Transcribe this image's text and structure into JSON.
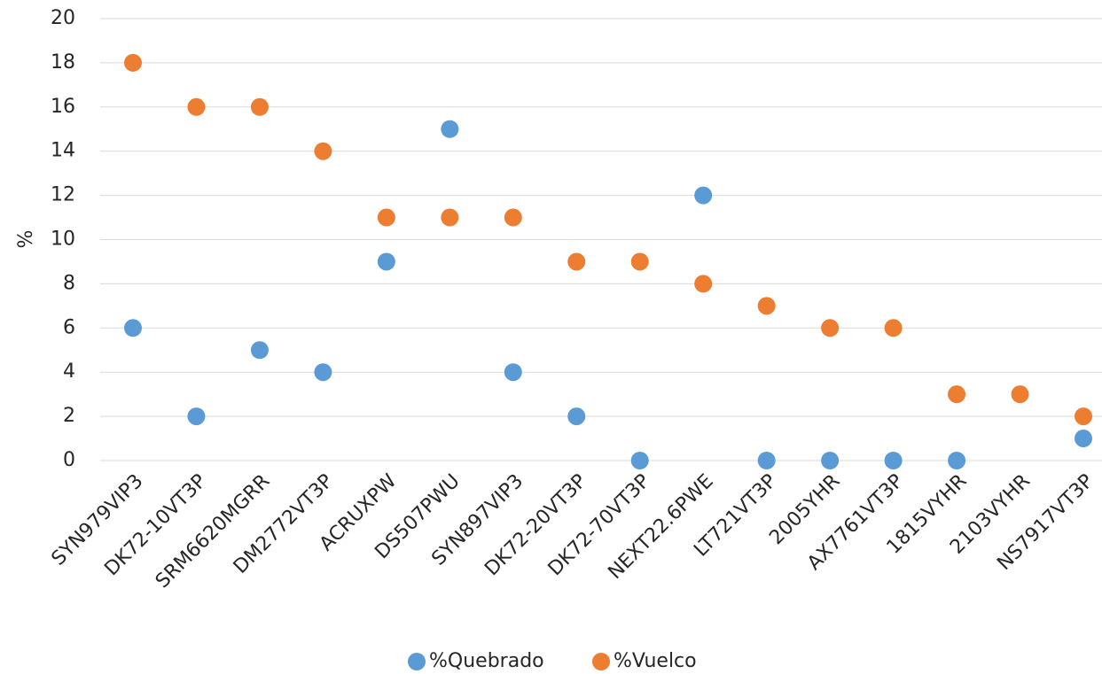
{
  "chart_data": {
    "type": "scatter",
    "y_label": "%",
    "categories": [
      "SYN979VIP3",
      "DK72-10VT3P",
      "SRM6620MGRR",
      "DM2772VT3P",
      "ACRUXPW",
      "DS507PWU",
      "SYN897VIP3",
      "DK72-20VT3P",
      "DK72-70VT3P",
      "NEXT22.6PWE",
      "LT721VT3P",
      "2005YHR",
      "AX7761VT3P",
      "1815VYHR",
      "2103VYHR",
      "NS7917VT3P"
    ],
    "series": [
      {
        "name": "%Quebrado",
        "color": "#5b9bd5",
        "values": [
          6,
          2,
          5,
          4,
          9,
          15,
          4,
          2,
          0,
          12,
          0,
          0,
          0,
          0,
          null,
          1
        ]
      },
      {
        "name": "%Vuelco",
        "color": "#ed7d31",
        "values": [
          18,
          16,
          16,
          14,
          11,
          11,
          11,
          9,
          9,
          8,
          7,
          6,
          6,
          3,
          3,
          2
        ]
      }
    ],
    "ylim": [
      0,
      20
    ],
    "yticks": [
      0,
      2,
      4,
      6,
      8,
      10,
      12,
      14,
      16,
      18,
      20
    ],
    "grid": true,
    "legend": "bottom"
  }
}
